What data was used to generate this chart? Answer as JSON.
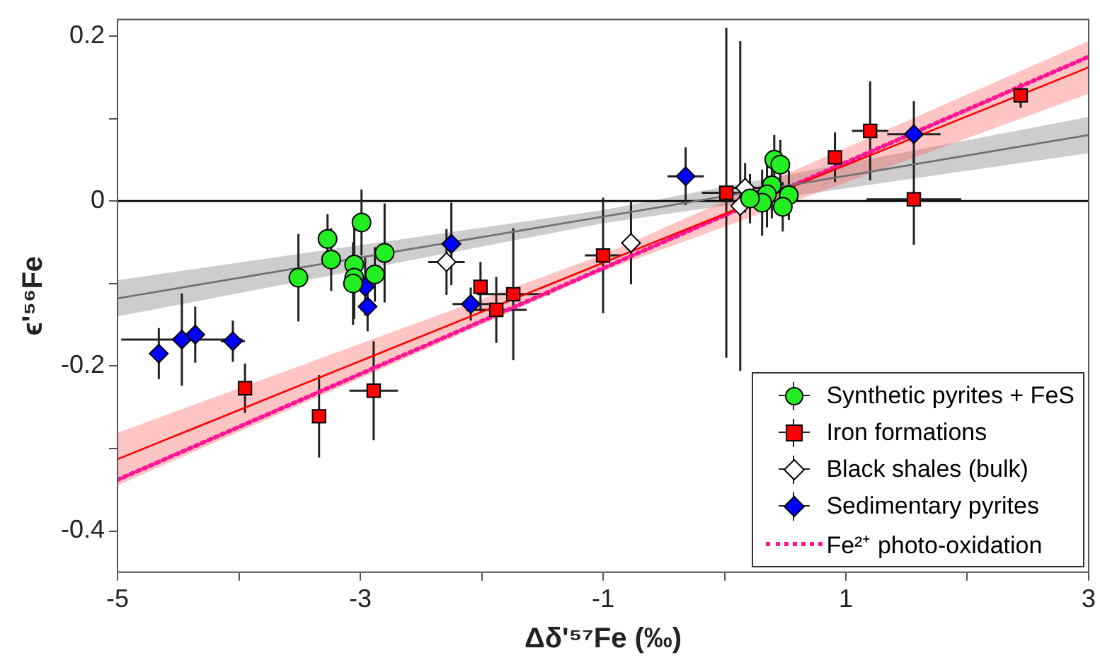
{
  "chart_data": {
    "type": "scatter",
    "xlabel": "Δδ'⁵⁷Fe (‰)",
    "ylabel": "ϵ'⁵⁶Fe",
    "xlim": [
      -5,
      3
    ],
    "ylim": [
      -0.45,
      0.22
    ],
    "xticks": [
      -5,
      {
        "value": -4,
        "label": null
      },
      -3,
      {
        "value": -2,
        "label": null
      },
      -1,
      {
        "value": 0,
        "label": null
      },
      1,
      {
        "value": 2,
        "label": null
      },
      3
    ],
    "yticks": [
      -0.4,
      {
        "value": -0.3,
        "label": null
      },
      -0.2,
      {
        "value": -0.1,
        "label": null
      },
      0,
      {
        "value": 0.1,
        "label": null
      },
      0.2
    ],
    "legend": "bottom right",
    "ref_lines": [
      {
        "axis": "y",
        "value": 0,
        "color": "#000000"
      }
    ],
    "series": [
      {
        "name": "Synthetic pyrites + FeS",
        "color": "#22ee22",
        "marker": "circle",
        "x": [
          -3.51,
          -3.27,
          -3.24,
          -2.99,
          -3.05,
          -3.05,
          -3.06,
          -2.88,
          -2.8,
          0.41,
          0.46,
          0.39,
          0.35,
          0.31,
          0.21,
          0.53,
          0.48
        ],
        "values": [
          -0.093,
          -0.046,
          -0.071,
          -0.026,
          -0.077,
          -0.093,
          -0.1,
          -0.089,
          -0.063,
          0.05,
          0.044,
          0.019,
          0.008,
          -0.002,
          0.003,
          0.007,
          -0.007
        ],
        "errors": [
          0.053,
          0.03,
          0.038,
          0.04,
          0.05,
          0.05,
          0.05,
          0.033,
          0.06,
          0.03,
          0.03,
          0.04,
          0.04,
          0.04,
          0.03,
          0.03,
          0.03
        ]
      },
      {
        "name": "Iron formations",
        "color": "#ff0000",
        "marker": "square",
        "x": [
          -3.95,
          -3.34,
          -2.89,
          -2.01,
          -1.88,
          -1.74,
          -1.0,
          0.015,
          0.91,
          1.2,
          1.56,
          2.44
        ],
        "values": [
          -0.227,
          -0.261,
          -0.23,
          -0.104,
          -0.132,
          -0.113,
          -0.066,
          0.01,
          0.053,
          0.085,
          0.002,
          0.128
        ],
        "errors": [
          0.03,
          0.05,
          0.06,
          0.03,
          0.04,
          0.08,
          0.07,
          0.2,
          0.03,
          0.06,
          0.055,
          0.015
        ],
        "xerrors": [
          null,
          null,
          0.2,
          null,
          0.25,
          0.3,
          0.15,
          0.2,
          null,
          0.15,
          0.39,
          null
        ]
      },
      {
        "name": "Black shales (bulk)",
        "color": "#ffffff",
        "marker": "diamond",
        "x": [
          -2.29,
          -0.77,
          0.17,
          0.13
        ],
        "values": [
          -0.074,
          -0.051,
          0.016,
          -0.006
        ],
        "errors": [
          0.04,
          0.05,
          0.03,
          0.2
        ],
        "xerrors": [
          0.15,
          null,
          0.15,
          null
        ]
      },
      {
        "name": "Sedimentary pyrites",
        "color": "#0000ff",
        "marker": "diamond",
        "x": [
          -4.66,
          -4.47,
          -4.36,
          -4.05,
          -2.96,
          -2.94,
          -2.25,
          -2.09,
          -0.32,
          1.56
        ],
        "values": [
          -0.185,
          -0.168,
          -0.162,
          -0.17,
          -0.104,
          -0.128,
          -0.052,
          -0.125,
          0.03,
          0.081
        ],
        "errors": [
          0.031,
          0.056,
          0.034,
          0.025,
          0.035,
          0.03,
          0.05,
          0.02,
          0.035,
          0.04
        ],
        "xerrors": [
          null,
          0.5,
          null,
          0.1,
          null,
          null,
          null,
          0.15,
          0.15,
          0.22
        ]
      },
      {
        "type": "line",
        "color": "#707070",
        "marker": "none",
        "line_style": "solid",
        "x": [
          -5,
          -1,
          3
        ],
        "values": [
          -0.118,
          -0.019,
          0.08
        ],
        "lower": [
          -0.14,
          -0.027,
          0.058
        ],
        "upper": [
          -0.096,
          -0.011,
          0.102
        ]
      },
      {
        "type": "line",
        "color": "#ff0000",
        "marker": "none",
        "line_style": "solid",
        "x": [
          -5,
          -1,
          3
        ],
        "values": [
          -0.313,
          -0.075,
          0.162
        ],
        "lower": [
          -0.345,
          -0.085,
          0.13
        ],
        "upper": [
          -0.281,
          -0.065,
          0.194
        ]
      },
      {
        "name": "Fe²⁺ photo-oxidation",
        "type": "line",
        "color": "#ff1493",
        "marker": "none",
        "line_style": "dotted",
        "x": [
          -5,
          3
        ],
        "values": [
          -0.338,
          0.175
        ]
      }
    ]
  }
}
